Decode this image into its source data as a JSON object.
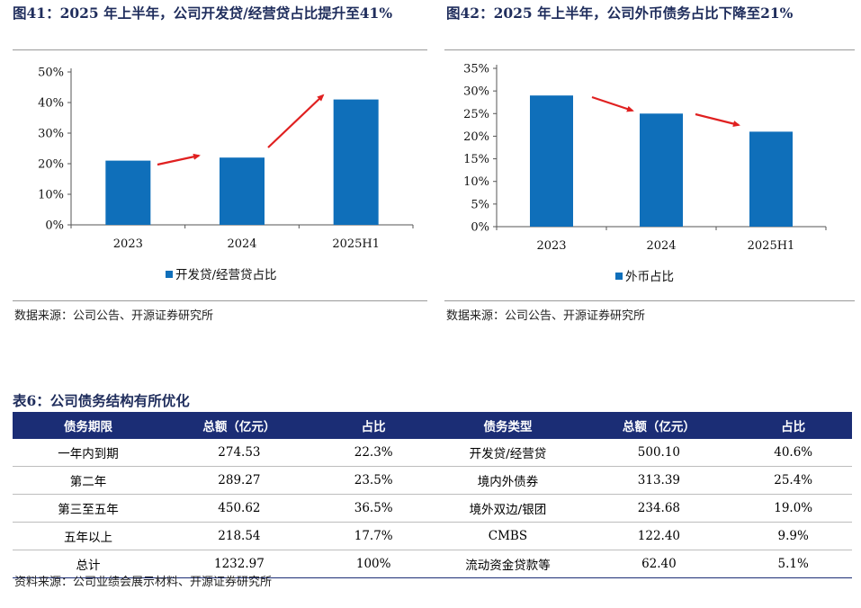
{
  "figure1": {
    "title": "图41：2025 年上半年，公司开发贷/经营贷占比提升至41%",
    "source": "数据来源：公司公告、开源证券研究所"
  },
  "figure2": {
    "title": "图42：2025 年上半年，公司外币债务占比下降至21%",
    "source": "数据来源：公司公告、开源证券研究所"
  },
  "chart_data": [
    {
      "type": "bar",
      "title": "图41：2025 年上半年，公司开发贷/经营贷占比提升至41%",
      "categories": [
        "2023",
        "2024",
        "2025H1"
      ],
      "series": [
        {
          "name": "开发贷/经营贷占比",
          "values": [
            21,
            22,
            41
          ]
        }
      ],
      "ylim": [
        0,
        50
      ],
      "yticks": [
        0,
        10,
        20,
        30,
        40,
        50
      ],
      "ytick_labels": [
        "0%",
        "10%",
        "20%",
        "30%",
        "40%",
        "50%"
      ],
      "xlabel": "",
      "ylabel": "",
      "legend_position": "bottom",
      "color": "#0f6fba",
      "arrow_color": "#e02020",
      "grid": false
    },
    {
      "type": "bar",
      "title": "图42：2025 年上半年，公司外币债务占比下降至21%",
      "categories": [
        "2023",
        "2024",
        "2025H1"
      ],
      "series": [
        {
          "name": "外币占比",
          "values": [
            29,
            25,
            21
          ]
        }
      ],
      "ylim": [
        0,
        35
      ],
      "yticks": [
        0,
        5,
        10,
        15,
        20,
        25,
        30,
        35
      ],
      "ytick_labels": [
        "0%",
        "5%",
        "10%",
        "15%",
        "20%",
        "25%",
        "30%",
        "35%"
      ],
      "xlabel": "",
      "ylabel": "",
      "legend_position": "bottom",
      "color": "#0f6fba",
      "arrow_color": "#e02020",
      "grid": false
    }
  ],
  "table": {
    "title": "表6：公司债务结构有所优化",
    "headers": [
      "债务期限",
      "总额（亿元）",
      "占比",
      "债务类型",
      "总额（亿元）",
      "占比"
    ],
    "rows": [
      [
        "一年内到期",
        "274.53",
        "22.3%",
        "开发贷/经营贷",
        "500.10",
        "40.6%"
      ],
      [
        "第二年",
        "289.27",
        "23.5%",
        "境内外债券",
        "313.39",
        "25.4%"
      ],
      [
        "第三至五年",
        "450.62",
        "36.5%",
        "境外双边/银团",
        "234.68",
        "19.0%"
      ],
      [
        "五年以上",
        "218.54",
        "17.7%",
        "CMBS",
        "122.40",
        "9.9%"
      ],
      [
        "总计",
        "1232.97",
        "100%",
        "流动资金贷款等",
        "62.40",
        "5.1%"
      ]
    ],
    "source": "资料来源：公司业绩会展示材料、开源证券研究所"
  }
}
